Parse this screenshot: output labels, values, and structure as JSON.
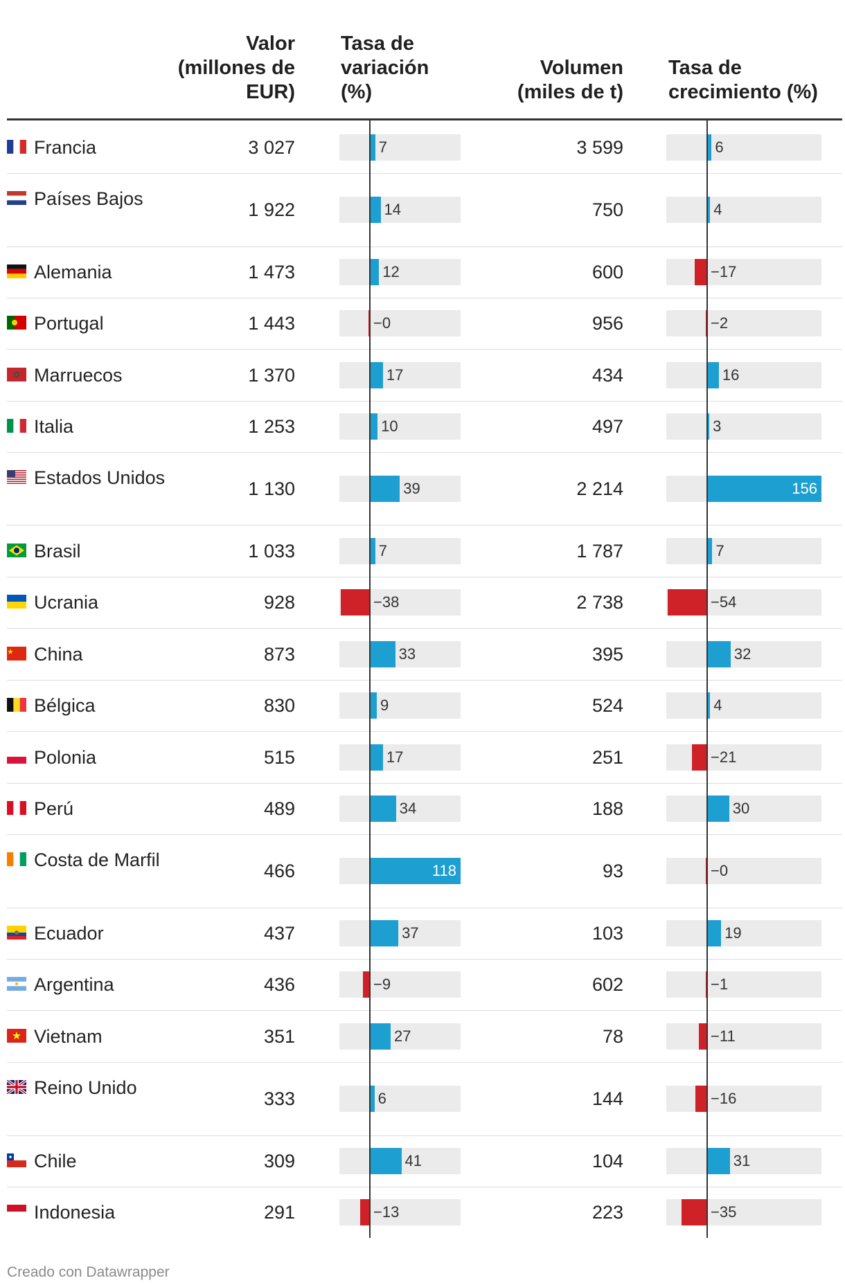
{
  "headers": {
    "country": "",
    "valor": "Valor\n(millones de\nEUR)",
    "tasa_variacion": "Tasa de\nvariación\n(%)",
    "volumen": "Volumen\n(miles de t)",
    "tasa_crecimiento": "Tasa de\ncrecimiento (%)"
  },
  "colors": {
    "positive": "#1d9fd1",
    "negative": "#cf2128",
    "track": "#ebebeb"
  },
  "chart_data": {
    "type": "table",
    "columns": [
      "Valor (millones de EUR)",
      "Tasa de variación (%)",
      "Volumen (miles de t)",
      "Tasa de crecimiento (%)"
    ],
    "ranges": {
      "tasa_variacion": [
        -38,
        118
      ],
      "tasa_crecimiento": [
        -54,
        156
      ]
    },
    "rows": [
      {
        "country": "Francia",
        "flag": "flag-fr",
        "valor": "3 027",
        "tv": 7,
        "tv_label": "7",
        "volumen": "3 599",
        "tc": 6,
        "tc_label": "6"
      },
      {
        "country": "Países Bajos",
        "flag": "flag-nl",
        "valor": "1 922",
        "tv": 14,
        "tv_label": "14",
        "volumen": "750",
        "tc": 4,
        "tc_label": "4"
      },
      {
        "country": "Alemania",
        "flag": "flag-de",
        "valor": "1 473",
        "tv": 12,
        "tv_label": "12",
        "volumen": "600",
        "tc": -17,
        "tc_label": "−17"
      },
      {
        "country": "Portugal",
        "flag": "flag-pt",
        "valor": "1 443",
        "tv": -0.3,
        "tv_label": "−0",
        "volumen": "956",
        "tc": -2,
        "tc_label": "−2"
      },
      {
        "country": "Marruecos",
        "flag": "flag-ma",
        "valor": "1 370",
        "tv": 17,
        "tv_label": "17",
        "volumen": "434",
        "tc": 16,
        "tc_label": "16"
      },
      {
        "country": "Italia",
        "flag": "flag-it",
        "valor": "1 253",
        "tv": 10,
        "tv_label": "10",
        "volumen": "497",
        "tc": 3,
        "tc_label": "3"
      },
      {
        "country": "Estados Unidos",
        "flag": "flag-us",
        "valor": "1 130",
        "tv": 39,
        "tv_label": "39",
        "volumen": "2 214",
        "tc": 156,
        "tc_label": "156"
      },
      {
        "country": "Brasil",
        "flag": "flag-br",
        "valor": "1 033",
        "tv": 7,
        "tv_label": "7",
        "volumen": "1 787",
        "tc": 7,
        "tc_label": "7"
      },
      {
        "country": "Ucrania",
        "flag": "flag-ua",
        "valor": "928",
        "tv": -38,
        "tv_label": "−38",
        "volumen": "2 738",
        "tc": -54,
        "tc_label": "−54"
      },
      {
        "country": "China",
        "flag": "flag-cn",
        "valor": "873",
        "tv": 33,
        "tv_label": "33",
        "volumen": "395",
        "tc": 32,
        "tc_label": "32"
      },
      {
        "country": "Bélgica",
        "flag": "flag-be",
        "valor": "830",
        "tv": 9,
        "tv_label": "9",
        "volumen": "524",
        "tc": 4,
        "tc_label": "4"
      },
      {
        "country": "Polonia",
        "flag": "flag-pl",
        "valor": "515",
        "tv": 17,
        "tv_label": "17",
        "volumen": "251",
        "tc": -21,
        "tc_label": "−21"
      },
      {
        "country": "Perú",
        "flag": "flag-pe",
        "valor": "489",
        "tv": 34,
        "tv_label": "34",
        "volumen": "188",
        "tc": 30,
        "tc_label": "30"
      },
      {
        "country": "Costa de Marfil",
        "flag": "flag-ci",
        "valor": "466",
        "tv": 118,
        "tv_label": "118",
        "volumen": "93",
        "tc": -0.1,
        "tc_label": "−0"
      },
      {
        "country": "Ecuador",
        "flag": "flag-ec",
        "valor": "437",
        "tv": 37,
        "tv_label": "37",
        "volumen": "103",
        "tc": 19,
        "tc_label": "19"
      },
      {
        "country": "Argentina",
        "flag": "flag-ar",
        "valor": "436",
        "tv": -9,
        "tv_label": "−9",
        "volumen": "602",
        "tc": -1,
        "tc_label": "−1"
      },
      {
        "country": "Vietnam",
        "flag": "flag-vn",
        "valor": "351",
        "tv": 27,
        "tv_label": "27",
        "volumen": "78",
        "tc": -11,
        "tc_label": "−11"
      },
      {
        "country": "Reino Unido",
        "flag": "flag-gb",
        "valor": "333",
        "tv": 6,
        "tv_label": "6",
        "volumen": "144",
        "tc": -16,
        "tc_label": "−16"
      },
      {
        "country": "Chile",
        "flag": "flag-cl",
        "valor": "309",
        "tv": 41,
        "tv_label": "41",
        "volumen": "104",
        "tc": 31,
        "tc_label": "31"
      },
      {
        "country": "Indonesia",
        "flag": "flag-id",
        "valor": "291",
        "tv": -13,
        "tv_label": "−13",
        "volumen": "223",
        "tc": -35,
        "tc_label": "−35"
      }
    ]
  },
  "footer": "Creado con Datawrapper"
}
